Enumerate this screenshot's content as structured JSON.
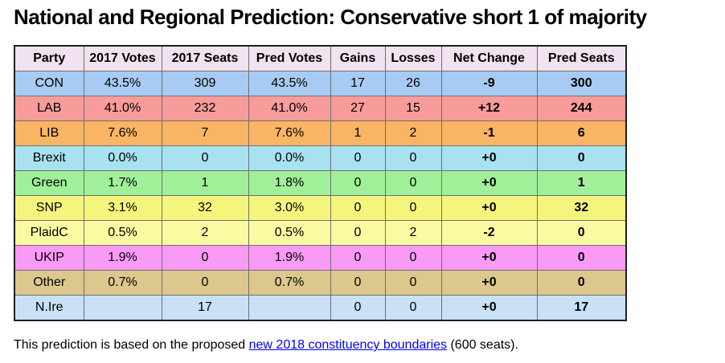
{
  "title": "National and Regional Prediction: Conservative short 1 of majority",
  "colors": {
    "header_bg": "#F0E2EF",
    "link": "#0000EE",
    "inner_border": "#6F6F6F",
    "outer_border": "#1F1F1F"
  },
  "table": {
    "headers": [
      "Party",
      "2017 Votes",
      "2017 Seats",
      "Pred Votes",
      "Gains",
      "Losses",
      "Net Change",
      "Pred Seats"
    ],
    "rows": [
      {
        "color": "#A8CBF3",
        "cells": [
          "CON",
          "43.5%",
          "309",
          "43.5%",
          "17",
          "26",
          "-9",
          "300"
        ]
      },
      {
        "color": "#F89B9B",
        "cells": [
          "LAB",
          "41.0%",
          "232",
          "41.0%",
          "27",
          "15",
          "+12",
          "244"
        ]
      },
      {
        "color": "#F9B563",
        "cells": [
          "LIB",
          "7.6%",
          "7",
          "7.6%",
          "1",
          "2",
          "-1",
          "6"
        ]
      },
      {
        "color": "#A8E2F0",
        "cells": [
          "Brexit",
          "0.0%",
          "0",
          "0.0%",
          "0",
          "0",
          "+0",
          "0"
        ]
      },
      {
        "color": "#A0F09A",
        "cells": [
          "Green",
          "1.7%",
          "1",
          "1.8%",
          "0",
          "0",
          "+0",
          "1"
        ]
      },
      {
        "color": "#F5F57D",
        "cells": [
          "SNP",
          "3.1%",
          "32",
          "3.0%",
          "0",
          "0",
          "+0",
          "32"
        ]
      },
      {
        "color": "#FAFAA2",
        "cells": [
          "PlaidC",
          "0.5%",
          "2",
          "0.5%",
          "0",
          "2",
          "-2",
          "0"
        ]
      },
      {
        "color": "#F99AF7",
        "cells": [
          "UKIP",
          "1.9%",
          "0",
          "1.9%",
          "0",
          "0",
          "+0",
          "0"
        ]
      },
      {
        "color": "#DCC78C",
        "cells": [
          "Other",
          "0.7%",
          "0",
          "0.7%",
          "0",
          "0",
          "+0",
          "0"
        ]
      },
      {
        "color": "#C9E0F7",
        "cells": [
          "N.Ire",
          "",
          "17",
          "",
          "0",
          "0",
          "+0",
          "17"
        ]
      }
    ]
  },
  "footer": {
    "prefix": "This prediction is based on the proposed ",
    "link_text": "new 2018 constituency boundaries",
    "suffix": " (600 seats)."
  }
}
